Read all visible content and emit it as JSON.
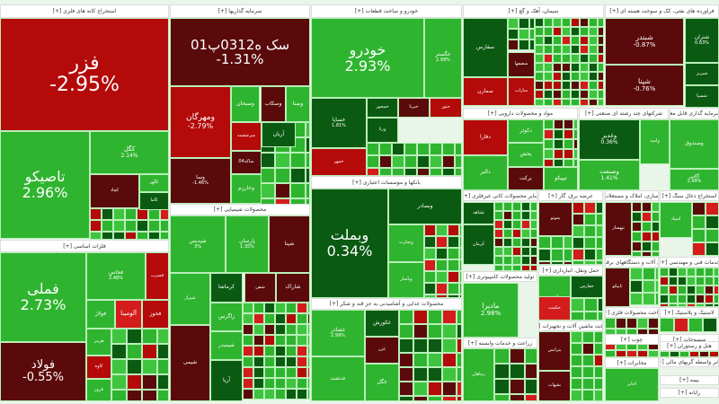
{
  "colors": {
    "green": "#2fb42f",
    "lightgreen": "#3fc43f",
    "darkgreen": "#0b5a12",
    "red": "#b40a0a",
    "brightred": "#d41c1c",
    "darkred": "#5a0a0a"
  },
  "sectors": [
    "استخراج کانه های فلزی [+]",
    "سرمایه گذاریها [+]",
    "خودرو و ساخت قطعات [+]",
    "سیمان، آهک و گچ [+]",
    "فراورده های نفتی، کک و سوخت هسته ای [+]",
    "فلزات اساسی [+]",
    "محصولات شیمیایی [+]",
    "بانکها و موسسات اعتباری [+]",
    "مواد و محصولات دارویی [+]",
    "شرکتهای چند رشته ای صنعتی [+]",
    "صندوق سرمایه گذاری قابل معامله [+]",
    "محصولات غذایی و آشامیدنی به جز قند و شکر [+]",
    "تولید محصولات کامپیوتری [+]",
    "زراعت و خدمات وابسته [+]",
    "حمل ونقل، انبارداری [+]",
    "ساخت ماشین آلات و تجهیزات [+]",
    "ماشین آلات و دستگاههای برقی [+]",
    "مخابرات [+]",
    "عرضه برق، گاز [+]",
    "سایر محصولات کانی غیرفلزی [+]",
    "انبوه سازی، املاک و مستغلات [+]",
    "خدمات فنی و مهندسی [+]",
    "استخراج ذغال سنگ [+]",
    "لاستیک و پلاستیک [+]",
    "منسوجات [+]",
    "هتل و رستوران [+]",
    "سایر واسطه گریهای مالی [+]",
    "ساخت محصولات فلزی [+]",
    "چوب [+]",
    "بیمه [+]",
    "رایانه [+]"
  ],
  "tiles": [
    {
      "symbol": "فزر",
      "pct": "-2.95%",
      "tone": "red"
    },
    {
      "symbol": "تاصیکو",
      "pct": "2.96%",
      "tone": "green"
    },
    {
      "symbol": "کگل",
      "pct": "2.14%",
      "tone": "green"
    },
    {
      "symbol": "کچاد",
      "pct": "",
      "tone": "darkred"
    },
    {
      "symbol": "کگهر",
      "pct": "",
      "tone": "green"
    },
    {
      "symbol": "کاما",
      "pct": "",
      "tone": "darkgreen"
    },
    {
      "symbol": "فملی",
      "pct": "2.73%",
      "tone": "green"
    },
    {
      "symbol": "فولاد",
      "pct": "-0.55%",
      "tone": "darkred"
    },
    {
      "symbol": "فخاس",
      "pct": "2.48%",
      "tone": "green"
    },
    {
      "symbol": "فسرب",
      "pct": "",
      "tone": "red"
    },
    {
      "symbol": "فولاژ",
      "pct": "",
      "tone": "green"
    },
    {
      "symbol": "آلومینا",
      "pct": "",
      "tone": "brightred"
    },
    {
      "symbol": "فخوز",
      "pct": "",
      "tone": "red"
    },
    {
      "symbol": "هرمز",
      "pct": "",
      "tone": "green"
    },
    {
      "symbol": "کاوه",
      "pct": "",
      "tone": "red"
    },
    {
      "symbol": "فروز",
      "pct": "",
      "tone": "green"
    },
    {
      "symbol": "سک ه0312پ01",
      "pct": "-1.31%",
      "tone": "darkred"
    },
    {
      "symbol": "ومهرگان",
      "pct": "-2.79%",
      "tone": "red"
    },
    {
      "symbol": "وسبحان",
      "pct": "",
      "tone": "green"
    },
    {
      "symbol": "وسکاب",
      "pct": "",
      "tone": "darkred"
    },
    {
      "symbol": "وصنا",
      "pct": "",
      "tone": "green"
    },
    {
      "symbol": "سرچشمه",
      "pct": "",
      "tone": "red"
    },
    {
      "symbol": "آریان",
      "pct": "",
      "tone": "darkgreen"
    },
    {
      "symbol": "وسا",
      "pct": "-1.46%",
      "tone": "darkred"
    },
    {
      "symbol": "ساکه04",
      "pct": "",
      "tone": "darkred"
    },
    {
      "symbol": "وخارزم",
      "pct": "",
      "tone": "green"
    },
    {
      "symbol": "شپدیس",
      "pct": "3%",
      "tone": "green"
    },
    {
      "symbol": "پارسان",
      "pct": "1.35%",
      "tone": "green"
    },
    {
      "symbol": "شپنا",
      "pct": "",
      "tone": "darkred"
    },
    {
      "symbol": "شیراز",
      "pct": "",
      "tone": "green"
    },
    {
      "symbol": "شفن",
      "pct": "",
      "tone": "darkred"
    },
    {
      "symbol": "کرماشا",
      "pct": "",
      "tone": "darkgreen"
    },
    {
      "symbol": "شاراک",
      "pct": "",
      "tone": "darkred"
    },
    {
      "symbol": "زاگرس",
      "pct": "",
      "tone": "green"
    },
    {
      "symbol": "شیمی",
      "pct": "",
      "tone": "darkred"
    },
    {
      "symbol": "شیمیدر",
      "pct": "",
      "tone": "green"
    },
    {
      "symbol": "آریا",
      "pct": "",
      "tone": "darkgreen"
    },
    {
      "symbol": "خودرو",
      "pct": "2.93%",
      "tone": "green"
    },
    {
      "symbol": "خگستر",
      "pct": "2.99%",
      "tone": "green"
    },
    {
      "symbol": "خساپا",
      "pct": "1.81%",
      "tone": "darkgreen"
    },
    {
      "symbol": "خمحور",
      "pct": "",
      "tone": "darkgreen"
    },
    {
      "symbol": "خبرنا",
      "pct": "",
      "tone": "darkred"
    },
    {
      "symbol": "ختور",
      "pct": "",
      "tone": "red"
    },
    {
      "symbol": "ورنا",
      "pct": "",
      "tone": "darkgreen"
    },
    {
      "symbol": "خمهر",
      "pct": "",
      "tone": "red"
    },
    {
      "symbol": "وبملت",
      "pct": "0.34%",
      "tone": "darkgreen"
    },
    {
      "symbol": "وبصادر",
      "pct": "",
      "tone": "darkgreen"
    },
    {
      "symbol": "وتجارت",
      "pct": "",
      "tone": "green"
    },
    {
      "symbol": "وپاسار",
      "pct": "",
      "tone": "green"
    },
    {
      "symbol": "غشاذر",
      "pct": "2.99%",
      "tone": "green"
    },
    {
      "symbol": "غدشت",
      "pct": "",
      "tone": "green"
    },
    {
      "symbol": "غکورش",
      "pct": "",
      "tone": "darkgreen"
    },
    {
      "symbol": "غزر",
      "pct": "",
      "tone": "darkred"
    },
    {
      "symbol": "غگل",
      "pct": "",
      "tone": "green"
    },
    {
      "symbol": "سفارس",
      "pct": "",
      "tone": "darkgreen"
    },
    {
      "symbol": "سمازن",
      "pct": "",
      "tone": "red"
    },
    {
      "symbol": "ساراب",
      "pct": "",
      "tone": "red"
    },
    {
      "symbol": "سصفها",
      "pct": "",
      "tone": "darkred"
    },
    {
      "symbol": "دفارا",
      "pct": "",
      "tone": "red"
    },
    {
      "symbol": "دکوثر",
      "pct": "",
      "tone": "green"
    },
    {
      "symbol": "دالبر",
      "pct": "",
      "tone": "green"
    },
    {
      "symbol": "پخش",
      "pct": "",
      "tone": "green"
    },
    {
      "symbol": "برکت",
      "pct": "",
      "tone": "darkred"
    },
    {
      "symbol": "تیپیکو",
      "pct": "",
      "tone": "green"
    },
    {
      "symbol": "شبندر",
      "pct": "-0.87%",
      "tone": "darkred"
    },
    {
      "symbol": "شپنا",
      "pct": "-0.76%",
      "tone": "darkred"
    },
    {
      "symbol": "شتران",
      "pct": "0.63%",
      "tone": "darkgreen"
    },
    {
      "symbol": "شبریز",
      "pct": "",
      "tone": "darkgreen"
    },
    {
      "symbol": "شسپا",
      "pct": "",
      "tone": "darkgreen"
    },
    {
      "symbol": "وصندوق",
      "pct": "",
      "tone": "green"
    },
    {
      "symbol": "وغدیر",
      "pct": "0.36%",
      "tone": "darkgreen"
    },
    {
      "symbol": "وصنعت",
      "pct": "1.41%",
      "tone": "green"
    },
    {
      "symbol": "وامید",
      "pct": "",
      "tone": "green"
    },
    {
      "symbol": "آگاس",
      "pct": "2.99%",
      "tone": "green"
    },
    {
      "symbol": "مادیرا",
      "pct": "2.98%",
      "tone": "green"
    },
    {
      "symbol": "ثشاهد",
      "pct": "",
      "tone": "darkgreen"
    },
    {
      "symbol": "کرمان",
      "pct": "",
      "tone": "darkgreen"
    },
    {
      "symbol": "زماهان",
      "pct": "",
      "tone": "green"
    },
    {
      "symbol": "حکشتی",
      "pct": "",
      "tone": "green"
    },
    {
      "symbol": "حفارس",
      "pct": "",
      "tone": "darkgreen"
    },
    {
      "symbol": "حکمت",
      "pct": "",
      "tone": "brightred"
    },
    {
      "symbol": "بترانس",
      "pct": "",
      "tone": "darkred"
    },
    {
      "symbol": "بشهاب",
      "pct": "",
      "tone": "darkred"
    },
    {
      "symbol": "تاپیکو",
      "pct": "",
      "tone": "darkred"
    },
    {
      "symbol": "اخابر",
      "pct": "",
      "tone": "green"
    },
    {
      "symbol": "بموتو",
      "pct": "",
      "tone": "darkred"
    },
    {
      "symbol": "اسپاد",
      "pct": "",
      "tone": "green"
    },
    {
      "symbol": "ثبهساز",
      "pct": "",
      "tone": "darkred"
    }
  ]
}
